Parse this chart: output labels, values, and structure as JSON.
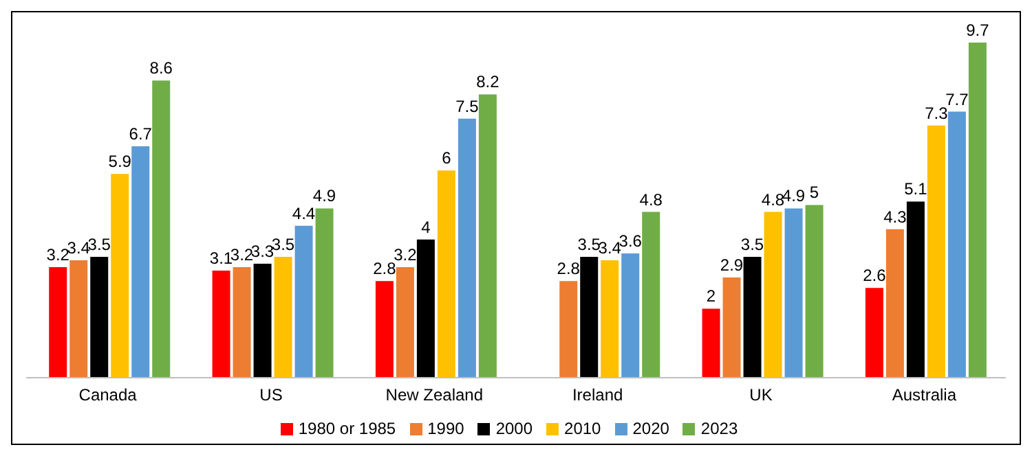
{
  "chart_data": {
    "type": "bar",
    "categories": [
      "Canada",
      "US",
      "New Zealand",
      "Ireland",
      "UK",
      "Australia"
    ],
    "series": [
      {
        "name": "1980 or 1985",
        "color": "#ff0000",
        "values": [
          3.2,
          3.1,
          2.8,
          null,
          2,
          2.6
        ]
      },
      {
        "name": "1990",
        "color": "#ed7d31",
        "values": [
          3.4,
          3.2,
          3.2,
          2.8,
          2.9,
          4.3
        ]
      },
      {
        "name": "2000",
        "color": "#000000",
        "values": [
          3.5,
          3.3,
          4,
          3.5,
          3.5,
          5.1
        ]
      },
      {
        "name": "2010",
        "color": "#ffc000",
        "values": [
          5.9,
          3.5,
          6,
          3.4,
          4.8,
          7.3
        ]
      },
      {
        "name": "2020",
        "color": "#5b9bd5",
        "values": [
          6.7,
          4.4,
          7.5,
          3.6,
          4.9,
          7.7
        ]
      },
      {
        "name": "2023",
        "color": "#70ad47",
        "values": [
          8.6,
          4.9,
          8.2,
          4.8,
          5,
          9.7
        ]
      }
    ],
    "data_labels": true,
    "grid": false,
    "legend": "bottom"
  }
}
